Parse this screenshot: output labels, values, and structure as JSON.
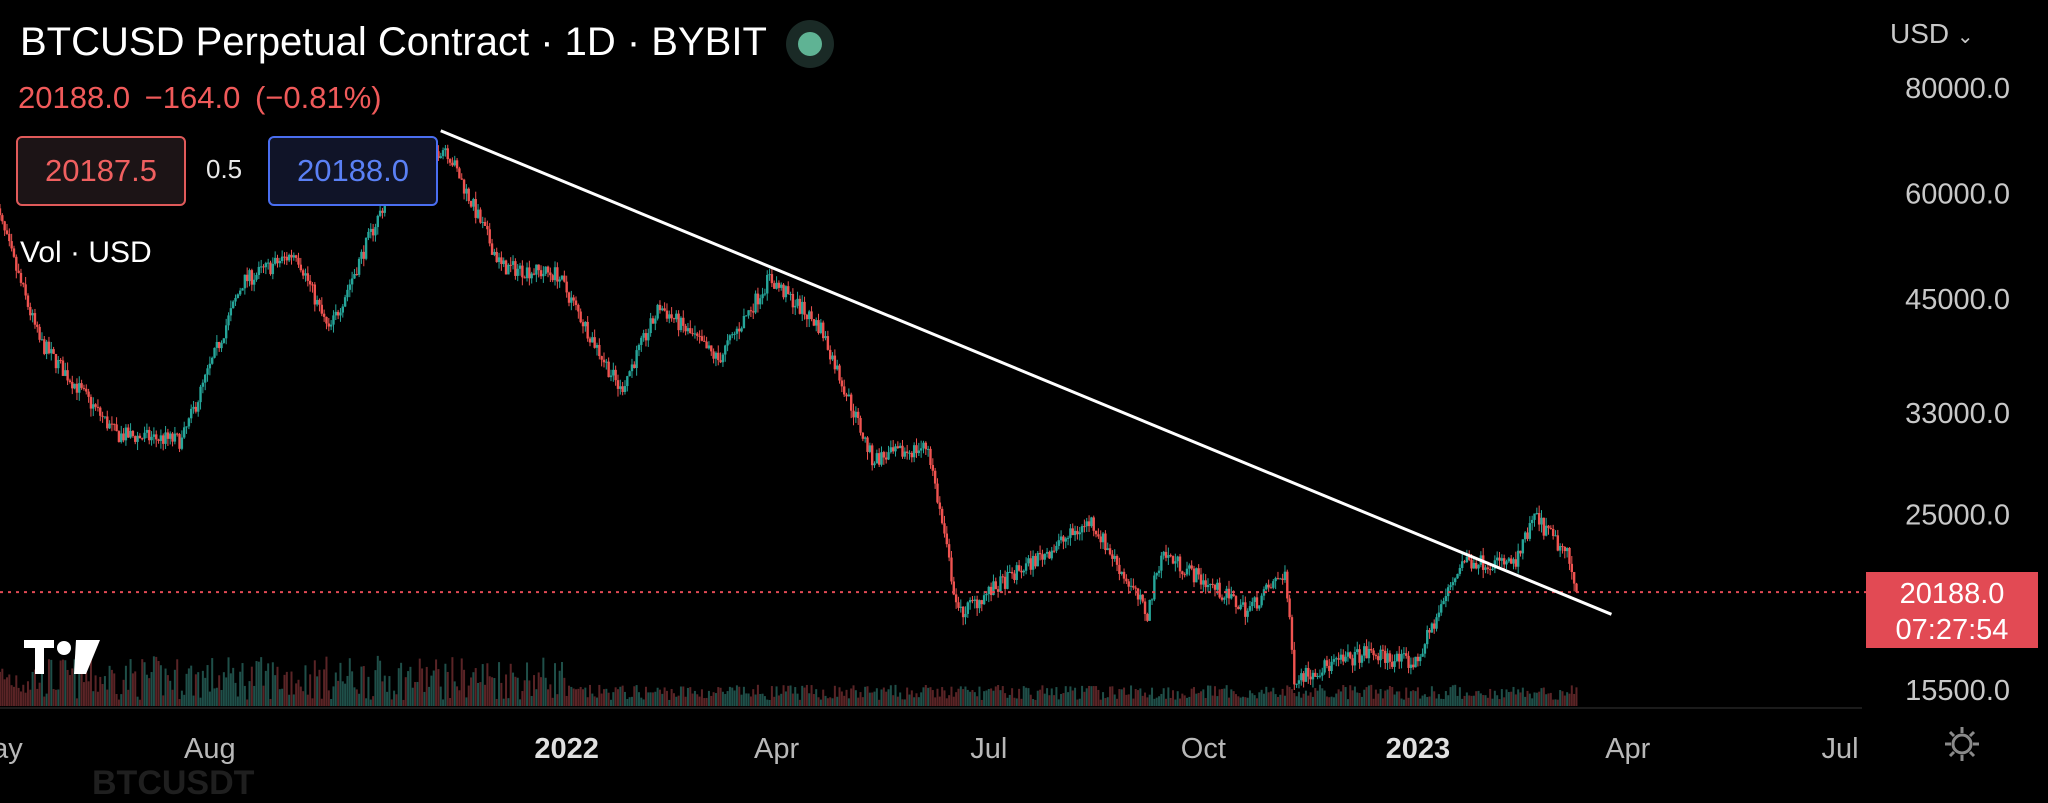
{
  "header": {
    "title": "BTCUSD Perpetual Contract · 1D · BYBIT",
    "quote": "20188.0  −164.0 (−0.81%)",
    "sell_price": "20187.5",
    "spread": "0.5",
    "buy_price": "20188.0",
    "volume_label": "Vol · USD"
  },
  "axis_currency": "USD",
  "price_badge": {
    "price": "20188.0",
    "countdown": "07:27:54"
  },
  "ghost_watermark": "BTCUSDT",
  "colors": {
    "up": "#26a69a",
    "down": "#ef5350",
    "trendline": "#ffffff",
    "badge": "#e24a54",
    "background": "#000000"
  },
  "chart_data": {
    "type": "candlestick",
    "scale": "log",
    "y_ticks": [
      80000,
      60000,
      45000,
      33000,
      25000,
      15500
    ],
    "x_ticks": [
      "May",
      "Aug",
      "2022",
      "Apr",
      "Jul",
      "Oct",
      "2023",
      "Apr",
      "Jul"
    ],
    "last_price": 20188.0,
    "close_path": [
      {
        "date": "2021-05-01",
        "close": 58000
      },
      {
        "date": "2021-05-20",
        "close": 40000
      },
      {
        "date": "2021-06-22",
        "close": 31000
      },
      {
        "date": "2021-07-20",
        "close": 30500
      },
      {
        "date": "2021-08-15",
        "close": 47000
      },
      {
        "date": "2021-09-07",
        "close": 51000
      },
      {
        "date": "2021-09-21",
        "close": 41000
      },
      {
        "date": "2021-10-20",
        "close": 63000
      },
      {
        "date": "2021-11-10",
        "close": 68000
      },
      {
        "date": "2021-12-04",
        "close": 49000
      },
      {
        "date": "2021-12-28",
        "close": 48000
      },
      {
        "date": "2022-01-24",
        "close": 35000
      },
      {
        "date": "2022-02-10",
        "close": 44000
      },
      {
        "date": "2022-03-07",
        "close": 38000
      },
      {
        "date": "2022-03-29",
        "close": 47500
      },
      {
        "date": "2022-04-20",
        "close": 41500
      },
      {
        "date": "2022-05-12",
        "close": 29000
      },
      {
        "date": "2022-06-05",
        "close": 30000
      },
      {
        "date": "2022-06-18",
        "close": 19000
      },
      {
        "date": "2022-07-10",
        "close": 21000
      },
      {
        "date": "2022-08-14",
        "close": 24500
      },
      {
        "date": "2022-09-07",
        "close": 19000
      },
      {
        "date": "2022-09-13",
        "close": 22500
      },
      {
        "date": "2022-10-20",
        "close": 19200
      },
      {
        "date": "2022-11-05",
        "close": 21300
      },
      {
        "date": "2022-11-09",
        "close": 16000
      },
      {
        "date": "2022-12-10",
        "close": 17100
      },
      {
        "date": "2022-12-31",
        "close": 16600
      },
      {
        "date": "2023-01-20",
        "close": 22000
      },
      {
        "date": "2023-02-12",
        "close": 21800
      },
      {
        "date": "2023-02-20",
        "close": 24800
      },
      {
        "date": "2023-03-06",
        "close": 22300
      },
      {
        "date": "2023-03-10",
        "close": 20188
      }
    ],
    "trendline": [
      {
        "date": "2021-11-08",
        "price": 71000
      },
      {
        "date": "2023-03-25",
        "price": 19000
      }
    ]
  }
}
